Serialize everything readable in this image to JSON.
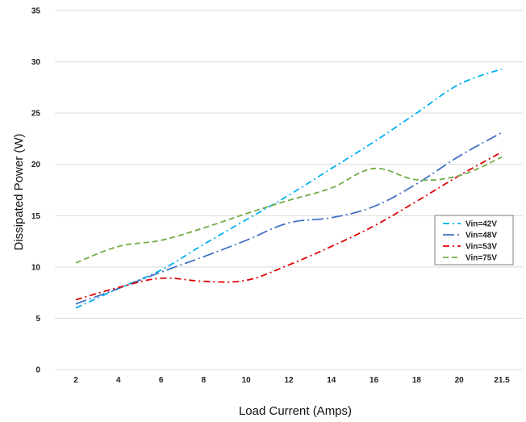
{
  "chart_data": {
    "type": "line",
    "title": "",
    "xlabel": "Load Current (Amps)",
    "ylabel": "Dissipated Power (W)",
    "categories": [
      "2",
      "4",
      "6",
      "8",
      "10",
      "12",
      "14",
      "16",
      "18",
      "20",
      "21.5"
    ],
    "ylim": [
      0,
      35
    ],
    "yticks": [
      0,
      5,
      10,
      15,
      20,
      25,
      30,
      35
    ],
    "grid": "horizontal",
    "legend_position": "right",
    "series": [
      {
        "name": "Vin=42V",
        "color": "#00b0f0",
        "dash": "dash-dot",
        "values": [
          6.0,
          7.9,
          9.7,
          12.2,
          14.6,
          17.0,
          19.6,
          22.2,
          25.0,
          27.8,
          29.3
        ]
      },
      {
        "name": "Vin=48V",
        "color": "#4472c4",
        "dash": "long-dash-dot",
        "values": [
          6.4,
          7.9,
          9.5,
          11.0,
          12.6,
          14.3,
          14.8,
          15.9,
          18.1,
          20.8,
          23.1
        ]
      },
      {
        "name": "Vin=53V",
        "color": "#e00000",
        "dash": "dash-dot",
        "values": [
          6.8,
          8.0,
          8.9,
          8.6,
          8.7,
          10.2,
          12.0,
          14.0,
          16.4,
          18.9,
          21.2
        ]
      },
      {
        "name": "Vin=75V",
        "color": "#70ad47",
        "dash": "dash",
        "values": [
          10.4,
          12.0,
          12.6,
          13.8,
          15.2,
          16.5,
          17.7,
          19.6,
          18.5,
          18.9,
          20.7
        ]
      }
    ]
  }
}
